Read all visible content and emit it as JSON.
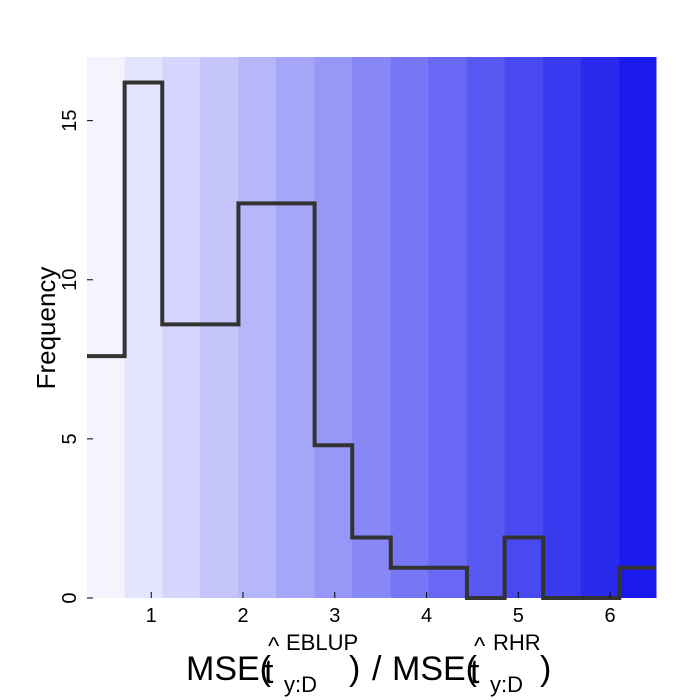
{
  "chart_data": {
    "type": "bar",
    "subtype": "step-histogram",
    "title": "",
    "ylabel": "Frequency",
    "xlabel": {
      "prefix": "MSE(",
      "hat_symbol": "t",
      "sub1": "y:D",
      "sup1": "EBLUP",
      "divider": "/",
      "prefix2": "MSE(",
      "sub2": "y:D",
      "sup2": "RHR",
      "close": ")"
    },
    "xlim": [
      0.3,
      6.5
    ],
    "ylim": [
      0,
      17
    ],
    "xticks": [
      1,
      2,
      3,
      4,
      5,
      6
    ],
    "yticks": [
      0,
      5,
      10,
      15
    ],
    "grid": false,
    "legend": "none",
    "bins": [
      {
        "x0": 0.3,
        "x1": 0.71,
        "count": 7.6
      },
      {
        "x0": 0.71,
        "x1": 1.12,
        "count": 16.2
      },
      {
        "x0": 1.12,
        "x1": 1.95,
        "count": 8.6
      },
      {
        "x0": 1.95,
        "x1": 2.78,
        "count": 12.4
      },
      {
        "x0": 2.78,
        "x1": 3.19,
        "count": 4.8
      },
      {
        "x0": 3.19,
        "x1": 3.61,
        "count": 1.9
      },
      {
        "x0": 3.61,
        "x1": 4.44,
        "count": 0.95
      },
      {
        "x0": 4.44,
        "x1": 4.85,
        "count": 0
      },
      {
        "x0": 4.85,
        "x1": 5.27,
        "count": 1.9
      },
      {
        "x0": 5.27,
        "x1": 6.1,
        "count": 0
      },
      {
        "x0": 6.1,
        "x1": 6.5,
        "count": 0.95
      }
    ],
    "background_bands": {
      "edges": [
        0.3,
        0.71,
        1.12,
        1.53,
        1.95,
        2.36,
        2.78,
        3.19,
        3.61,
        4.02,
        4.44,
        4.85,
        5.27,
        5.68,
        6.1,
        6.5
      ],
      "color_start": "#f4f4ff",
      "color_end": "#1a1aee"
    },
    "line_color": "#333333"
  }
}
